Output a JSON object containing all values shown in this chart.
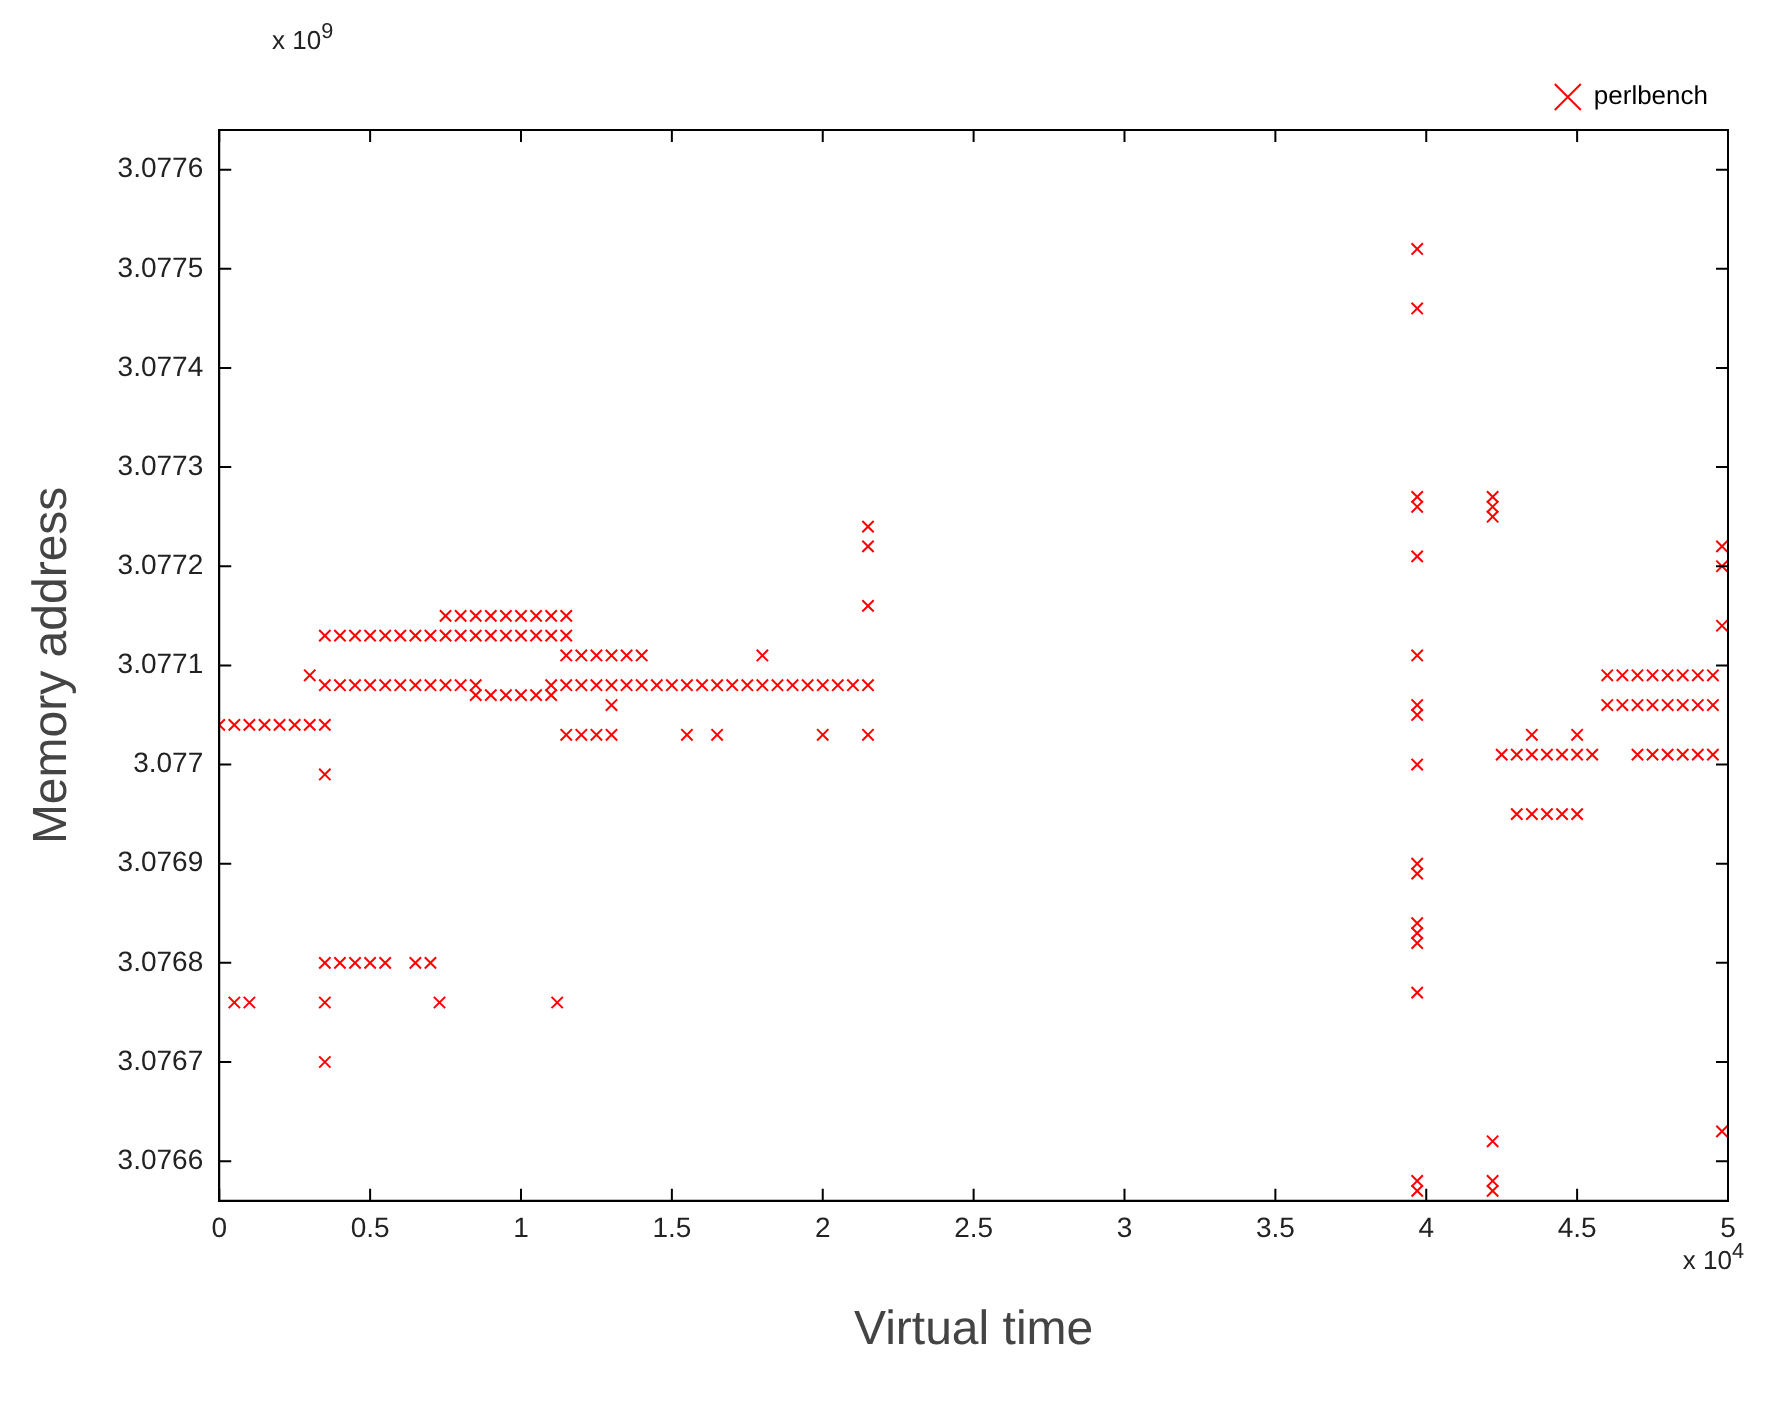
{
  "chart_data": {
    "type": "scatter",
    "xlabel": "Virtual time",
    "ylabel": "Memory address",
    "annotations": [
      "x 10$^{9}$",
      "x 10$^{4}$"
    ],
    "xlim": [
      0,
      5
    ],
    "xticks": [
      0,
      0.5,
      1,
      1.5,
      2,
      2.5,
      3,
      3.5,
      4,
      4.5,
      5
    ],
    "ylim": [
      3.07656,
      3.07764
    ],
    "yticks": [
      3.0766,
      3.0767,
      3.0768,
      3.0769,
      3.077,
      3.0771,
      3.0772,
      3.0773,
      3.0774,
      3.0775,
      3.0776
    ],
    "grid": false,
    "legend": "top right",
    "marker": "cross",
    "series": [
      {
        "name": "perlbench",
        "color": "#ff0000",
        "x": [
          0,
          0.05,
          0.1,
          0.15,
          0.2,
          0.25,
          0.3,
          0.35,
          0.05,
          0.1,
          0.35,
          0.35,
          0.35,
          0.3,
          0.35,
          0.4,
          0.45,
          0.5,
          0.55,
          0.6,
          0.65,
          0.7,
          0.75,
          0.8,
          0.85,
          0.35,
          0.4,
          0.45,
          0.5,
          0.55,
          0.6,
          0.65,
          0.7,
          0.35,
          0.4,
          0.45,
          0.5,
          0.55,
          0.65,
          0.7,
          0.73,
          1.12,
          0.75,
          0.8,
          0.85,
          0.9,
          0.95,
          1,
          1.05,
          1.1,
          1.15,
          0.75,
          0.8,
          0.85,
          0.9,
          0.95,
          1,
          1.05,
          1.1,
          1.15,
          0.85,
          0.9,
          0.95,
          1,
          1.05,
          1.1,
          1.15,
          1.2,
          1.25,
          1.3,
          1.35,
          1.4,
          1.15,
          1.2,
          1.25,
          1.3,
          1.55,
          1.65,
          2,
          2.15,
          1.1,
          1.15,
          1.2,
          1.25,
          1.3,
          1.35,
          1.4,
          1.45,
          1.5,
          1.55,
          1.6,
          1.65,
          1.7,
          1.75,
          1.8,
          1.85,
          1.9,
          1.95,
          2,
          2.05,
          2.1,
          2.15,
          1.8,
          1.3,
          2.15,
          2.15,
          2.15,
          3.97,
          3.97,
          3.97,
          3.97,
          3.97,
          3.97,
          3.97,
          3.97,
          3.97,
          3.97,
          3.97,
          3.97,
          3.97,
          3.97,
          3.97,
          3.97,
          3.97,
          4.22,
          4.22,
          4.22,
          4.22,
          4.22,
          4.22,
          4.25,
          4.3,
          4.35,
          4.4,
          4.45,
          4.5,
          4.55,
          4.3,
          4.35,
          4.4,
          4.45,
          4.5,
          4.35,
          4.5,
          4.6,
          4.65,
          4.7,
          4.75,
          4.8,
          4.85,
          4.9,
          4.95,
          4.6,
          4.65,
          4.7,
          4.75,
          4.8,
          4.85,
          4.9,
          4.95,
          4.7,
          4.75,
          4.8,
          4.85,
          4.9,
          4.95,
          4.98,
          4.98,
          4.98,
          4.98
        ],
        "values": [
          3.07704,
          3.07704,
          3.07704,
          3.07704,
          3.07704,
          3.07704,
          3.07704,
          3.07704,
          3.07676,
          3.07676,
          3.07699,
          3.07676,
          3.0767,
          3.07709,
          3.07708,
          3.07708,
          3.07708,
          3.07708,
          3.07708,
          3.07708,
          3.07708,
          3.07708,
          3.07708,
          3.07708,
          3.07708,
          3.07713,
          3.07713,
          3.07713,
          3.07713,
          3.07713,
          3.07713,
          3.07713,
          3.07713,
          3.0768,
          3.0768,
          3.0768,
          3.0768,
          3.0768,
          3.0768,
          3.0768,
          3.07676,
          3.07676,
          3.07715,
          3.07715,
          3.07715,
          3.07715,
          3.07715,
          3.07715,
          3.07715,
          3.07715,
          3.07715,
          3.07713,
          3.07713,
          3.07713,
          3.07713,
          3.07713,
          3.07713,
          3.07713,
          3.07713,
          3.07713,
          3.07707,
          3.07707,
          3.07707,
          3.07707,
          3.07707,
          3.07707,
          3.07711,
          3.07711,
          3.07711,
          3.07711,
          3.07711,
          3.07711,
          3.07703,
          3.07703,
          3.07703,
          3.07703,
          3.07703,
          3.07703,
          3.07703,
          3.07703,
          3.07708,
          3.07708,
          3.07708,
          3.07708,
          3.07708,
          3.07708,
          3.07708,
          3.07708,
          3.07708,
          3.07708,
          3.07708,
          3.07708,
          3.07708,
          3.07708,
          3.07708,
          3.07708,
          3.07708,
          3.07708,
          3.07708,
          3.07708,
          3.07708,
          3.07708,
          3.07711,
          3.07706,
          3.07724,
          3.07722,
          3.07716,
          3.07752,
          3.07746,
          3.07727,
          3.07726,
          3.07721,
          3.07711,
          3.07706,
          3.07705,
          3.077,
          3.0769,
          3.07689,
          3.07684,
          3.07683,
          3.07682,
          3.07677,
          3.07658,
          3.07657,
          3.07727,
          3.07726,
          3.07725,
          3.07662,
          3.07658,
          3.07657,
          3.07701,
          3.07701,
          3.07701,
          3.07701,
          3.07701,
          3.07701,
          3.07701,
          3.07695,
          3.07695,
          3.07695,
          3.07695,
          3.07695,
          3.07703,
          3.07703,
          3.07709,
          3.07709,
          3.07709,
          3.07709,
          3.07709,
          3.07709,
          3.07709,
          3.07709,
          3.07706,
          3.07706,
          3.07706,
          3.07706,
          3.07706,
          3.07706,
          3.07706,
          3.07706,
          3.07701,
          3.07701,
          3.07701,
          3.07701,
          3.07701,
          3.07701,
          3.07722,
          3.0772,
          3.07714,
          3.07663
        ]
      }
    ]
  }
}
